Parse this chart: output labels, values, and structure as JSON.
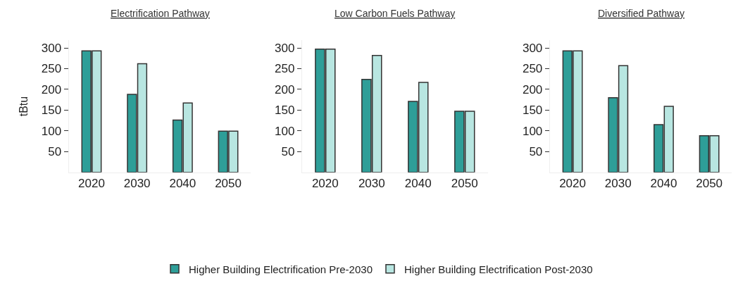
{
  "chart_data": [
    {
      "type": "bar",
      "title": "Electrification Pathway",
      "ylabel": "tBtu",
      "categories": [
        "2020",
        "2030",
        "2040",
        "2050"
      ],
      "ylim": [
        0,
        318
      ],
      "yticks": [
        50,
        100,
        150,
        200,
        250,
        300
      ],
      "legend": "bottom",
      "series": [
        {
          "name": "Higher Building Electrification Pre-2030",
          "color": "#2e9e98",
          "values": [
            293,
            188,
            126,
            99
          ]
        },
        {
          "name": "Higher Building Electrification Post-2030",
          "color": "#b8e6e1",
          "values": [
            293,
            262,
            167,
            99
          ]
        }
      ]
    },
    {
      "type": "bar",
      "title": "Low Carbon Fuels Pathway",
      "categories": [
        "2020",
        "2030",
        "2040",
        "2050"
      ],
      "ylim": [
        0,
        318
      ],
      "yticks": [
        50,
        100,
        150,
        200,
        250,
        300
      ],
      "series": [
        {
          "color": "#2e9e98",
          "values": [
            297,
            224,
            171,
            147
          ]
        },
        {
          "color": "#b8e6e1",
          "values": [
            297,
            282,
            217,
            147
          ]
        }
      ]
    },
    {
      "type": "bar",
      "title": "Diversified Pathway",
      "categories": [
        "2020",
        "2030",
        "2040",
        "2050"
      ],
      "ylim": [
        0,
        318
      ],
      "yticks": [
        50,
        100,
        150,
        200,
        250,
        300
      ],
      "series": [
        {
          "color": "#2e9e98",
          "values": [
            293,
            180,
            115,
            88
          ]
        },
        {
          "color": "#b8e6e1",
          "values": [
            293,
            257,
            159,
            88
          ]
        }
      ]
    }
  ]
}
